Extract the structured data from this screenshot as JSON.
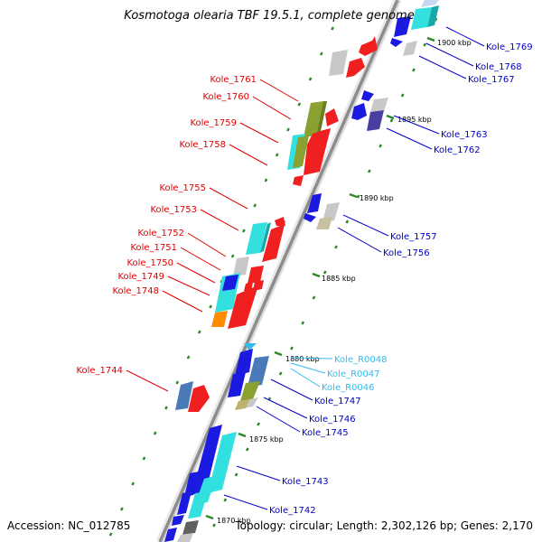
{
  "title": "Kosmotoga olearia TBF 19.5.1, complete genome",
  "footer": {
    "accession": "Accession: NC_012785",
    "topology": "Topology: circular; Length: 2,302,126 bp; Genes: 2,170"
  },
  "colors": {
    "left_label": "#e00000",
    "right_label": "#0000c8",
    "rna_label": "#33bbee",
    "backbone": "#9a9a9a",
    "tick": "#2a8a2a"
  },
  "scale_ticks": [
    {
      "label": "1900 kbp"
    },
    {
      "label": "1895 kbp"
    },
    {
      "label": "1890 kbp"
    },
    {
      "label": "1885 kbp"
    },
    {
      "label": "1880 kbp"
    },
    {
      "label": "1875 kbp"
    },
    {
      "label": "1870 kbp"
    }
  ],
  "left_genes": [
    {
      "label": "Kole_1761"
    },
    {
      "label": "Kole_1760"
    },
    {
      "label": "Kole_1759"
    },
    {
      "label": "Kole_1758"
    },
    {
      "label": "Kole_1755"
    },
    {
      "label": "Kole_1753"
    },
    {
      "label": "Kole_1752"
    },
    {
      "label": "Kole_1751"
    },
    {
      "label": "Kole_1750"
    },
    {
      "label": "Kole_1749"
    },
    {
      "label": "Kole_1748"
    },
    {
      "label": "Kole_1744"
    }
  ],
  "right_genes": [
    {
      "label": "Kole_1769",
      "type": "gene"
    },
    {
      "label": "Kole_1768",
      "type": "gene"
    },
    {
      "label": "Kole_1767",
      "type": "gene"
    },
    {
      "label": "Kole_1763",
      "type": "gene"
    },
    {
      "label": "Kole_1762",
      "type": "gene"
    },
    {
      "label": "Kole_1757",
      "type": "gene"
    },
    {
      "label": "Kole_1756",
      "type": "gene"
    },
    {
      "label": "Kole_R0048",
      "type": "rna"
    },
    {
      "label": "Kole_R0047",
      "type": "rna"
    },
    {
      "label": "Kole_R0046",
      "type": "rna"
    },
    {
      "label": "Kole_1747",
      "type": "gene"
    },
    {
      "label": "Kole_1746",
      "type": "gene"
    },
    {
      "label": "Kole_1745",
      "type": "gene"
    },
    {
      "label": "Kole_1743",
      "type": "gene"
    },
    {
      "label": "Kole_1742",
      "type": "gene"
    }
  ]
}
